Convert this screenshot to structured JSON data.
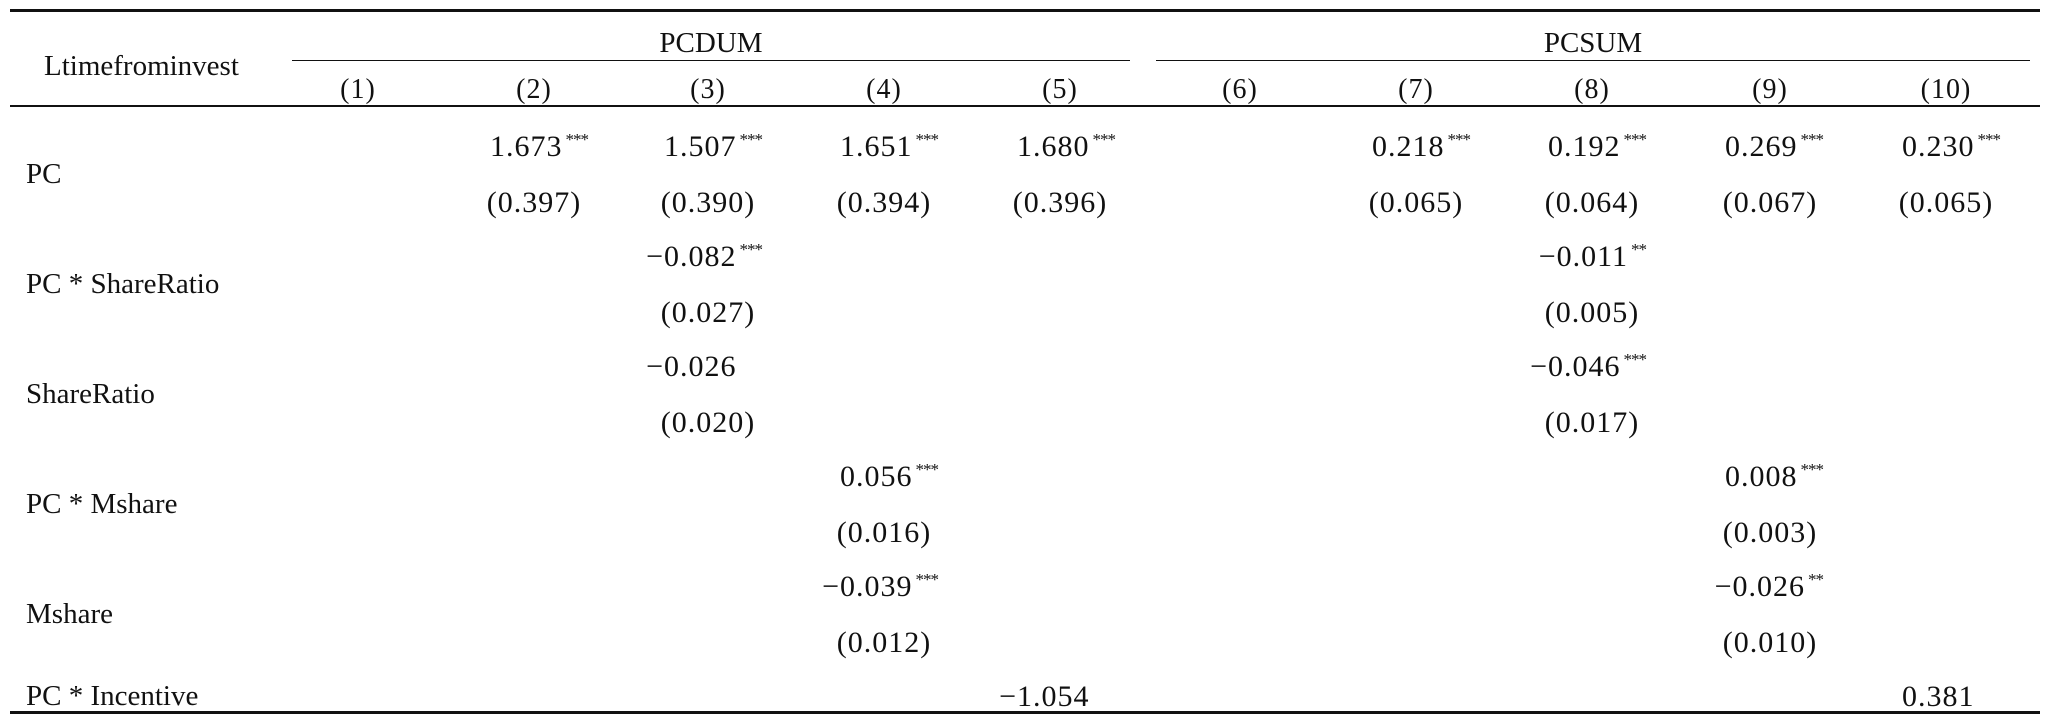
{
  "stub_header": "Ltimefrominvest",
  "groups": [
    {
      "label": "PCDUM"
    },
    {
      "label": "PCSUM"
    }
  ],
  "columns": [
    "(1)",
    "(2)",
    "(3)",
    "(4)",
    "(5)",
    "(6)",
    "(7)",
    "(8)",
    "(9)",
    "(10)"
  ],
  "rows": [
    {
      "label": "PC",
      "coef": [
        "",
        "1.673",
        "1.507",
        "1.651",
        "1.680",
        "",
        "0.218",
        "0.192",
        "0.269",
        "0.230"
      ],
      "stars": [
        "",
        "***",
        "***",
        "***",
        "***",
        "",
        "***",
        "***",
        "***",
        "***"
      ],
      "se": [
        "",
        "(0.397)",
        "(0.390)",
        "(0.394)",
        "(0.396)",
        "",
        "(0.065)",
        "(0.064)",
        "(0.067)",
        "(0.065)"
      ]
    },
    {
      "label": "PC * ShareRatio",
      "coef": [
        "",
        "",
        "−0.082",
        "",
        "",
        "",
        "",
        "−0.011",
        "",
        ""
      ],
      "stars": [
        "",
        "",
        "***",
        "",
        "",
        "",
        "",
        "**",
        "",
        ""
      ],
      "se": [
        "",
        "",
        "(0.027)",
        "",
        "",
        "",
        "",
        "(0.005)",
        "",
        ""
      ]
    },
    {
      "label": "ShareRatio",
      "coef": [
        "",
        "",
        "−0.026",
        "",
        "",
        "",
        "",
        "−0.046",
        "",
        ""
      ],
      "stars": [
        "",
        "",
        "",
        "",
        "",
        "",
        "",
        "***",
        "",
        ""
      ],
      "se": [
        "",
        "",
        "(0.020)",
        "",
        "",
        "",
        "",
        "(0.017)",
        "",
        ""
      ]
    },
    {
      "label": "PC * Mshare",
      "coef": [
        "",
        "",
        "",
        "0.056",
        "",
        "",
        "",
        "",
        "0.008",
        ""
      ],
      "stars": [
        "",
        "",
        "",
        "***",
        "",
        "",
        "",
        "",
        "***",
        ""
      ],
      "se": [
        "",
        "",
        "",
        "(0.016)",
        "",
        "",
        "",
        "",
        "(0.003)",
        ""
      ]
    },
    {
      "label": "Mshare",
      "coef": [
        "",
        "",
        "",
        "−0.039",
        "",
        "",
        "",
        "",
        "−0.026",
        ""
      ],
      "stars": [
        "",
        "",
        "",
        "***",
        "",
        "",
        "",
        "",
        "**",
        ""
      ],
      "se": [
        "",
        "",
        "",
        "(0.012)",
        "",
        "",
        "",
        "",
        "(0.010)",
        ""
      ]
    },
    {
      "label": "PC * Incentive",
      "coef": [
        "",
        "",
        "",
        "",
        "−1.054",
        "",
        "",
        "",
        "",
        "0.381"
      ],
      "stars": [
        "",
        "",
        "",
        "",
        "",
        "",
        "",
        "",
        "",
        ""
      ],
      "se": [
        "",
        "",
        "",
        "",
        "",
        "",
        "",
        "",
        "",
        ""
      ]
    }
  ]
}
